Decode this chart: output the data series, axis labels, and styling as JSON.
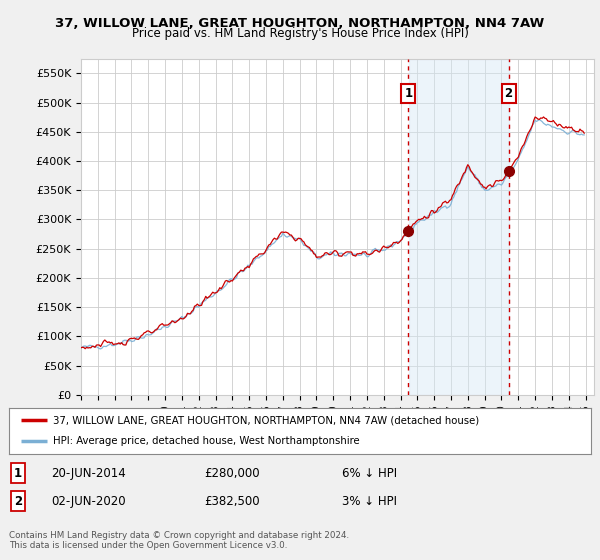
{
  "title1": "37, WILLOW LANE, GREAT HOUGHTON, NORTHAMPTON, NN4 7AW",
  "title2": "Price paid vs. HM Land Registry's House Price Index (HPI)",
  "ylim": [
    0,
    575000
  ],
  "yticks": [
    0,
    50000,
    100000,
    150000,
    200000,
    250000,
    300000,
    350000,
    400000,
    450000,
    500000,
    550000
  ],
  "ytick_labels": [
    "£0",
    "£50K",
    "£100K",
    "£150K",
    "£200K",
    "£250K",
    "£300K",
    "£350K",
    "£400K",
    "£450K",
    "£500K",
    "£550K"
  ],
  "sale1_year": 2014.47,
  "sale1_price": 280000,
  "sale2_year": 2020.42,
  "sale2_price": 382500,
  "legend_line1": "37, WILLOW LANE, GREAT HOUGHTON, NORTHAMPTON, NN4 7AW (detached house)",
  "legend_line2": "HPI: Average price, detached house, West Northamptonshire",
  "label1_date": "20-JUN-2014",
  "label1_price": "£280,000",
  "label1_hpi": "6% ↓ HPI",
  "label2_date": "02-JUN-2020",
  "label2_price": "£382,500",
  "label2_hpi": "3% ↓ HPI",
  "footer": "Contains HM Land Registry data © Crown copyright and database right 2024.\nThis data is licensed under the Open Government Licence v3.0.",
  "hpi_color": "#7bafd4",
  "sold_color": "#cc0000",
  "vline_color": "#cc0000",
  "shade_color": "#d6e8f5",
  "background_color": "#f0f0f0",
  "plot_bg_color": "#ffffff",
  "grid_color": "#cccccc",
  "xstart": 1995,
  "xend": 2025
}
